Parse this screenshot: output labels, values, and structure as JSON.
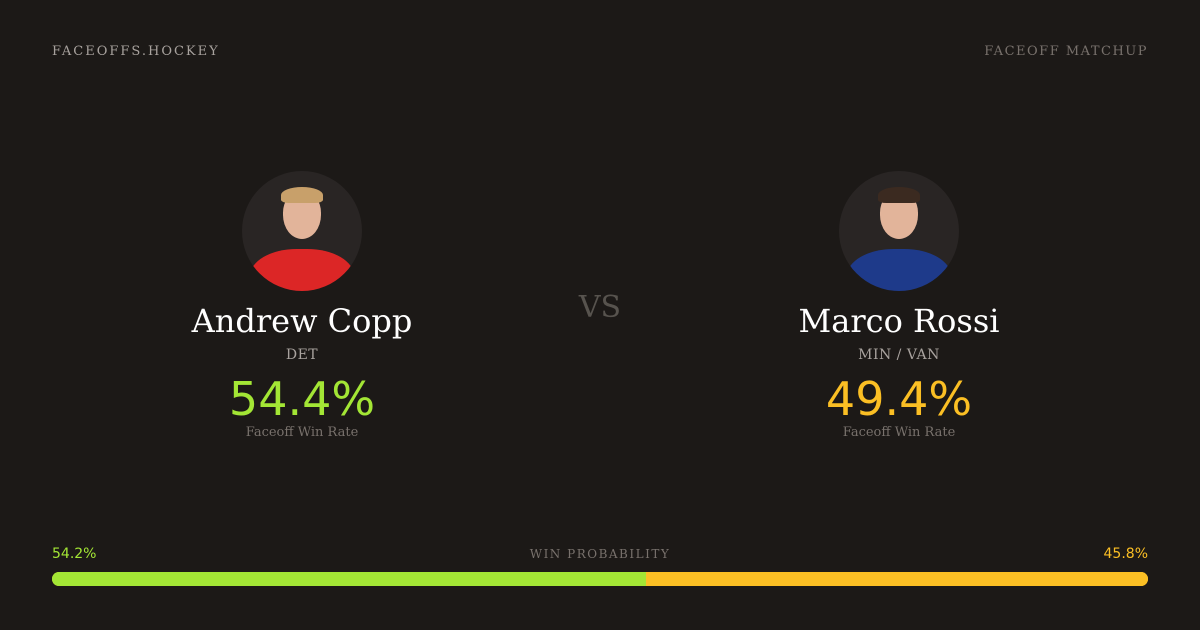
{
  "header": {
    "brand": "FACEOFFS.HOCKEY",
    "tag": "FACEOFF MATCHUP"
  },
  "players": [
    {
      "name": "Andrew Copp",
      "team": "DET",
      "win_rate": "54.4%",
      "win_rate_label": "Faceoff Win Rate",
      "color": "#a3e635",
      "jersey": "#dc2626",
      "hair": "#c8a06a"
    },
    {
      "name": "Marco Rossi",
      "team": "MIN / VAN",
      "win_rate": "49.4%",
      "win_rate_label": "Faceoff Win Rate",
      "color": "#fbbf24",
      "jersey": "#1e3a8a",
      "hair": "#3b2a20"
    }
  ],
  "vs": "VS",
  "probability": {
    "label": "WIN PROBABILITY",
    "left": "54.2%",
    "right": "45.8%",
    "left_value": 54.2,
    "right_value": 45.8
  }
}
